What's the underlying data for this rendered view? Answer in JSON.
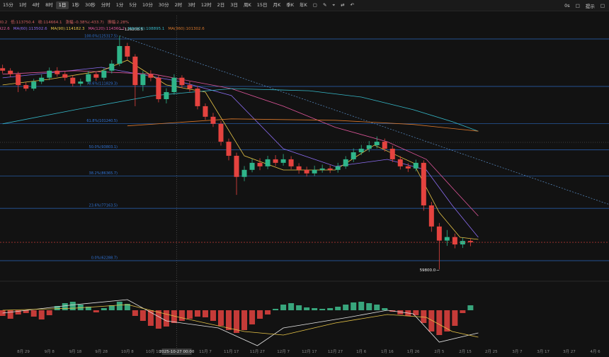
{
  "toolbar": {
    "items": [
      "15分",
      "1时",
      "4时",
      "8时",
      "1日",
      "1秒",
      "30秒",
      "分时",
      "1分",
      "5分",
      "10分",
      "30分",
      "2时",
      "3时",
      "12时",
      "2日",
      "3日",
      "周K",
      "15日",
      "月K",
      "季K",
      "年K"
    ],
    "active": 4,
    "right": [
      "0s",
      "提示"
    ]
  },
  "chart_data": [
    {
      "type": "candlestick",
      "legend_lines": [
        [
          "80.2",
          "低:113750.4",
          "收:114664.1",
          "涨幅:-0.38%(-433.7)",
          "振幅:2.28%"
        ],
        [
          "422.6"
        ]
      ],
      "x": [
        -8,
        -5,
        -2,
        1,
        4,
        7,
        10,
        13,
        16,
        19,
        22,
        25,
        28,
        31,
        34,
        37,
        40,
        43,
        46,
        49,
        52,
        55,
        58,
        61,
        64,
        67,
        70,
        73,
        76,
        79,
        82,
        85,
        88,
        91,
        94,
        97,
        100,
        103,
        106,
        109,
        112,
        115,
        118,
        121,
        124,
        127,
        130,
        133,
        136,
        139,
        142,
        145,
        148,
        151,
        154,
        157,
        160,
        163,
        166,
        169,
        172
      ],
      "open": [
        117000,
        116300,
        115300,
        112200,
        111200,
        113200,
        114300,
        116300,
        115300,
        114300,
        112600,
        113200,
        115300,
        114300,
        116300,
        118300,
        123300,
        120300,
        112200,
        115300,
        114300,
        108200,
        110200,
        114300,
        112200,
        111200,
        106200,
        103200,
        101200,
        96100,
        92100,
        86100,
        88100,
        90100,
        89100,
        91100,
        90100,
        91100,
        89100,
        88100,
        87100,
        88100,
        88500,
        88100,
        89100,
        91100,
        93100,
        94100,
        95100,
        96100,
        94100,
        91100,
        89100,
        88500,
        90100,
        78000,
        72000,
        68000,
        69000,
        66900,
        67900
      ],
      "high": [
        118000,
        117000,
        116000,
        113000,
        114000,
        115200,
        117200,
        117300,
        116000,
        115000,
        114000,
        116200,
        116000,
        117100,
        119300,
        126208.5,
        124200,
        121000,
        116200,
        116400,
        115000,
        111300,
        115300,
        115000,
        113200,
        112000,
        107000,
        104300,
        102000,
        97000,
        93000,
        89200,
        91200,
        91400,
        92100,
        92300,
        92600,
        92000,
        90000,
        89000,
        89300,
        89600,
        89400,
        90100,
        92000,
        94200,
        95200,
        96300,
        97600,
        97000,
        95000,
        92000,
        90000,
        91000,
        90800,
        79000,
        73000,
        71000,
        70000,
        68800,
        68600
      ],
      "low": [
        115500,
        114500,
        110200,
        110500,
        110600,
        112500,
        113600,
        114600,
        113500,
        111800,
        111900,
        112500,
        113400,
        113600,
        115500,
        117600,
        119300,
        106200,
        110500,
        113300,
        107300,
        107000,
        109500,
        111300,
        110300,
        105300,
        102300,
        100300,
        95000,
        90800,
        81000,
        84900,
        87400,
        88000,
        88300,
        89200,
        89300,
        88300,
        87000,
        86200,
        86300,
        87300,
        87200,
        87300,
        88400,
        90300,
        92300,
        93200,
        94200,
        93300,
        90300,
        88200,
        87500,
        87700,
        76500,
        70500,
        59800,
        66500,
        65800,
        65900,
        66400
      ],
      "close": [
        116300,
        115300,
        112200,
        111200,
        113200,
        114300,
        116300,
        115300,
        114300,
        112600,
        113200,
        115300,
        114300,
        116300,
        118300,
        123300,
        120300,
        112200,
        115300,
        114300,
        108200,
        110200,
        114300,
        112200,
        111200,
        106200,
        103200,
        101200,
        96100,
        92100,
        86100,
        88100,
        90100,
        89100,
        91100,
        90100,
        91100,
        89100,
        88100,
        87100,
        88100,
        88500,
        88100,
        89100,
        91100,
        93100,
        94100,
        95100,
        96100,
        94100,
        91100,
        89100,
        88500,
        90100,
        78000,
        72000,
        68000,
        69000,
        66900,
        67900,
        67500
      ],
      "up_color": "#2fb58a",
      "down_color": "#e5433f",
      "series": [
        {
          "name": "MA(60):113502.6",
          "color": "#8c6df2",
          "x": [
            -8,
            30,
            60,
            80,
            100,
            120,
            140,
            155,
            165,
            175
          ],
          "values": [
            114250,
            117270,
            113240,
            109220,
            94110,
            89080,
            91090,
            88070,
            78000,
            68940
          ]
        },
        {
          "name": "MA(90):114182.3",
          "color": "#e8c547",
          "x": [
            -8,
            10,
            30,
            40,
            55,
            70,
            85,
            100,
            120,
            135,
            150,
            160,
            168,
            175
          ],
          "values": [
            112240,
            113850,
            116260,
            119280,
            112240,
            110220,
            92100,
            88070,
            88070,
            95120,
            90080,
            75980,
            68940,
            68330
          ]
        },
        {
          "name": "MA(120):114360.2",
          "color": "#e0569b",
          "x": [
            -8,
            20,
            50,
            80,
            100,
            120,
            140,
            155,
            165,
            175
          ],
          "values": [
            115300,
            116300,
            115300,
            111200,
            106200,
            100200,
            96100,
            91100,
            83000,
            75000
          ]
        },
        {
          "name": "MA(200):108895.1",
          "color": "#35b8c8",
          "x": [
            -8,
            20,
            50,
            80,
            110,
            130,
            150,
            165,
            175
          ],
          "values": [
            101200,
            105200,
            109200,
            111200,
            110600,
            108800,
            105200,
            101800,
            99100
          ]
        },
        {
          "name": "MA(360):101302.6",
          "color": "#d9772b",
          "x": [
            40,
            80,
            120,
            150,
            175
          ],
          "values": [
            100600,
            102600,
            102200,
            101000,
            99100
          ]
        }
      ],
      "fib_levels": [
        {
          "value": 125317.5,
          "label": "100.0%(125317.5)"
        },
        {
          "value": 111829.3,
          "label": "78.6%(111829.3)"
        },
        {
          "value": 101240.5,
          "label": "61.8%(101240.5)"
        },
        {
          "value": 93803.1,
          "label": "50.0%(93803.1)"
        },
        {
          "value": 86365.7,
          "label": "38.2%(86365.7)"
        },
        {
          "value": 77163.5,
          "label": "23.6%(77163.5)"
        },
        {
          "value": 62288.7,
          "label": "0.0%(62288.7)"
        }
      ],
      "fib_color": "#2f74d8",
      "annotations": [
        {
          "x": 37,
          "value": 126208.5,
          "label": "126208.5",
          "side": "high"
        },
        {
          "x": 160,
          "value": 59800,
          "label": "59800.0",
          "side": "low"
        }
      ],
      "crosshair": {
        "x": 59,
        "label": "2025-10-27 00:00"
      },
      "xlim": [
        -9,
        225.3
      ],
      "ylim": [
        56850,
        131960
      ],
      "xticks": [
        {
          "value": 0,
          "label": "8月 29"
        },
        {
          "value": 10,
          "label": "9月 8"
        },
        {
          "value": 20,
          "label": "9月 18"
        },
        {
          "value": 30,
          "label": "9月 28"
        },
        {
          "value": 40,
          "label": "10月 8"
        },
        {
          "value": 50,
          "label": "10月 18"
        },
        {
          "value": 70,
          "label": "11月 7"
        },
        {
          "value": 80,
          "label": "11月 17"
        },
        {
          "value": 90,
          "label": "11月 27"
        },
        {
          "value": 100,
          "label": "12月 7"
        },
        {
          "value": 110,
          "label": "12月 17"
        },
        {
          "value": 120,
          "label": "12月 27"
        },
        {
          "value": 130,
          "label": "1月 6"
        },
        {
          "value": 140,
          "label": "1月 16"
        },
        {
          "value": 150,
          "label": "1月 26"
        },
        {
          "value": 160,
          "label": "2月 5"
        },
        {
          "value": 170,
          "label": "2月 15"
        },
        {
          "value": 180,
          "label": "2月 25"
        },
        {
          "value": 190,
          "label": "3月 7"
        },
        {
          "value": 200,
          "label": "3月 17"
        },
        {
          "value": 210,
          "label": "3月 27"
        },
        {
          "value": 220,
          "label": "4月 6"
        }
      ]
    },
    {
      "type": "macd",
      "x": [
        -8,
        -5,
        -2,
        1,
        4,
        7,
        10,
        13,
        16,
        19,
        22,
        25,
        28,
        31,
        34,
        37,
        40,
        43,
        46,
        49,
        52,
        55,
        58,
        61,
        64,
        67,
        70,
        73,
        76,
        79,
        82,
        85,
        88,
        91,
        94,
        97,
        100,
        103,
        106,
        109,
        112,
        115,
        118,
        121,
        124,
        127,
        130,
        133,
        136,
        139,
        142,
        145,
        148,
        151,
        154,
        157,
        160,
        163,
        166,
        169,
        172
      ],
      "values": [
        -800,
        -1200,
        -600,
        -400,
        -900,
        -1300,
        -700,
        600,
        1000,
        1200,
        800,
        500,
        -300,
        300,
        700,
        1200,
        900,
        -800,
        -1500,
        -2200,
        -2600,
        -2300,
        -1800,
        -1500,
        -1200,
        -900,
        -1000,
        -1500,
        -2200,
        -2800,
        -3200,
        -2800,
        -2000,
        -1200,
        -600,
        200,
        800,
        1000,
        700,
        400,
        300,
        200,
        300,
        500,
        800,
        1100,
        1200,
        1000,
        800,
        300,
        -200,
        -600,
        -800,
        -700,
        -1800,
        -3000,
        -3500,
        -3000,
        -2200,
        -400,
        700
      ],
      "up_color": "#3fbf8f",
      "down_color": "#e5433f",
      "lines": [
        {
          "color": "#e6e6e6",
          "x": [
            -8,
            20,
            40,
            55,
            75,
            90,
            100,
            125,
            140,
            150,
            160,
            175
          ],
          "values": [
            -400,
            800,
            1500,
            -1500,
            -2500,
            -5000,
            -2500,
            -1000,
            0,
            -500,
            -4500,
            -3200
          ]
        },
        {
          "color": "#e8c547",
          "x": [
            -8,
            20,
            40,
            60,
            85,
            100,
            120,
            140,
            155,
            165,
            175
          ],
          "values": [
            0,
            300,
            800,
            -1000,
            -3000,
            -3500,
            -1800,
            -600,
            -1000,
            -3000,
            -3800
          ]
        }
      ],
      "xlim": [
        -9,
        225.3
      ],
      "ylim": [
        -5400,
        3800
      ]
    }
  ]
}
